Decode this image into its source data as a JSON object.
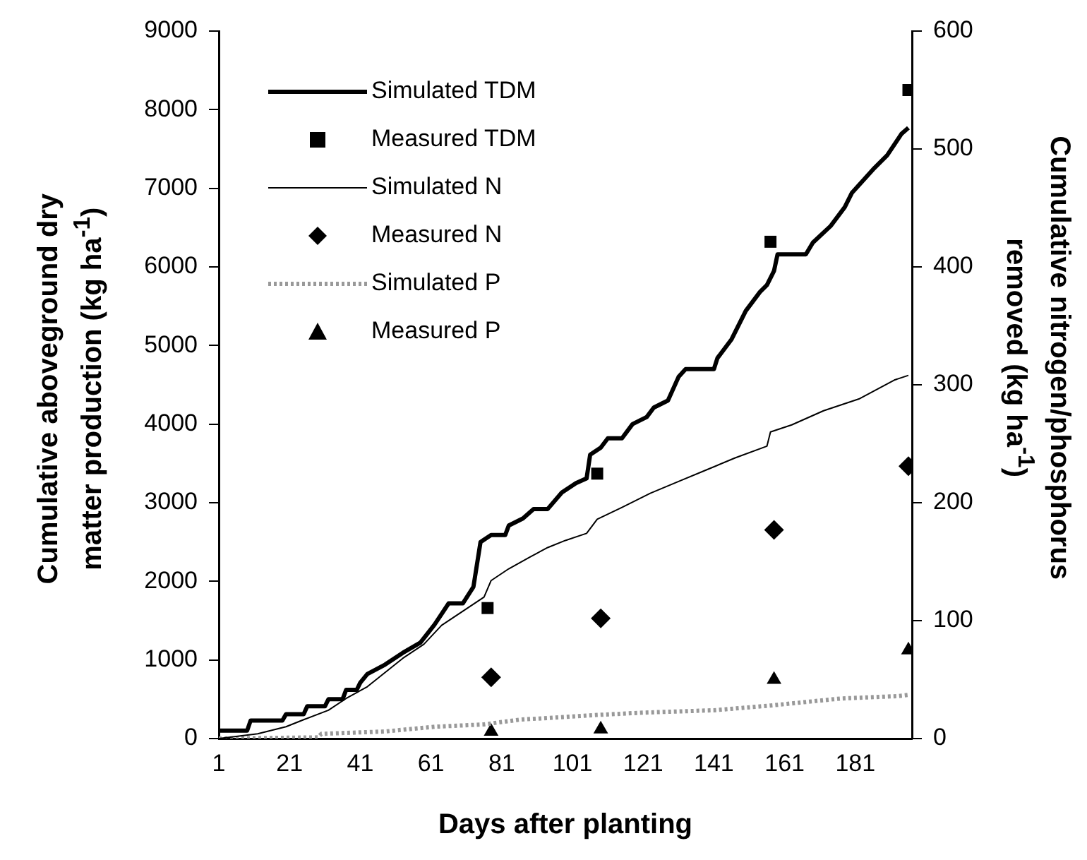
{
  "chart_data": {
    "type": "line",
    "xlabel": "Days after planting",
    "ylabel": "Cumulative aboveground dry matter production (kg ha$^{-1}$)",
    "y2label": "Cumulative nitrogen/phosphorus removed (kg ha$^{-1}$)",
    "xlim": [
      1,
      197
    ],
    "xticks": [
      1,
      21,
      41,
      61,
      81,
      101,
      121,
      141,
      161,
      181
    ],
    "ylim": [
      0,
      9000
    ],
    "yticks": [
      0,
      1000,
      2000,
      3000,
      4000,
      5000,
      6000,
      7000,
      8000,
      9000
    ],
    "y2lim": [
      0,
      600
    ],
    "y2ticks": [
      0,
      100,
      200,
      300,
      400,
      500,
      600
    ],
    "grid": false,
    "legend": "top left",
    "series": [
      {
        "name": "Simulated TDM",
        "color": "#000000",
        "marker": "none",
        "line_style": "solid",
        "x": [
          1,
          9,
          10,
          19,
          20,
          25,
          26,
          31,
          32,
          36,
          37,
          40,
          41,
          43,
          48,
          53,
          58,
          62,
          66,
          70,
          73,
          75,
          78,
          82,
          83,
          87,
          90,
          94,
          98,
          102,
          105,
          106,
          109,
          111,
          115,
          118,
          122,
          124,
          128,
          131,
          133,
          136,
          141,
          142,
          146,
          150,
          154,
          156,
          158,
          159,
          167,
          169,
          174,
          178,
          180,
          186,
          190,
          194,
          196
        ],
        "values": [
          100,
          100,
          230,
          230,
          310,
          310,
          410,
          410,
          500,
          500,
          620,
          620,
          710,
          820,
          940,
          1090,
          1220,
          1450,
          1720,
          1720,
          1930,
          2500,
          2590,
          2590,
          2710,
          2800,
          2920,
          2920,
          3130,
          3250,
          3310,
          3610,
          3700,
          3820,
          3820,
          4000,
          4090,
          4210,
          4300,
          4600,
          4700,
          4700,
          4700,
          4840,
          5080,
          5440,
          5680,
          5770,
          5950,
          6160,
          6160,
          6310,
          6520,
          6760,
          6940,
          7240,
          7420,
          7690,
          7770
        ]
      },
      {
        "name": "Measured TDM",
        "type": "scatter",
        "color": "#000000",
        "marker": "square",
        "x": [
          77,
          108,
          157,
          196
        ],
        "values": [
          1660,
          3370,
          6320,
          8250
        ]
      },
      {
        "name": "Simulated N",
        "axis": "y2",
        "color": "#000000",
        "marker": "none",
        "line_style": "solid",
        "x": [
          1,
          12,
          20,
          25,
          32,
          37,
          43,
          48,
          53,
          59,
          64,
          70,
          76,
          78,
          83,
          89,
          94,
          99,
          105,
          108,
          115,
          123,
          131,
          139,
          147,
          156,
          157,
          163,
          172,
          182,
          192,
          196
        ],
        "values": [
          0,
          4,
          10,
          16,
          24,
          34,
          44,
          56,
          68,
          80,
          96,
          108,
          120,
          134,
          144,
          154,
          162,
          168,
          174,
          186,
          196,
          208,
          218,
          228,
          238,
          248,
          260,
          266,
          278,
          288,
          304,
          308
        ]
      },
      {
        "name": "Measured N",
        "type": "scatter",
        "axis": "y2",
        "color": "#000000",
        "marker": "diamond",
        "x": [
          78,
          109,
          158,
          196
        ],
        "values": [
          52,
          102,
          177,
          231
        ]
      },
      {
        "name": "Simulated P",
        "axis": "y2",
        "color": "#999999",
        "marker": "none",
        "line_style": "dotted",
        "x": [
          1,
          29,
          30,
          48,
          62,
          76,
          86,
          108,
          121,
          141,
          157,
          177,
          193,
          196
        ],
        "values": [
          0,
          1,
          4,
          6,
          10,
          12,
          16,
          20,
          22,
          24,
          28,
          34,
          36,
          37
        ]
      },
      {
        "name": "Measured P",
        "type": "scatter",
        "axis": "y2",
        "color": "#000000",
        "marker": "triangle",
        "x": [
          78,
          109,
          158,
          196
        ],
        "values": [
          6,
          8,
          50,
          75
        ]
      }
    ]
  }
}
